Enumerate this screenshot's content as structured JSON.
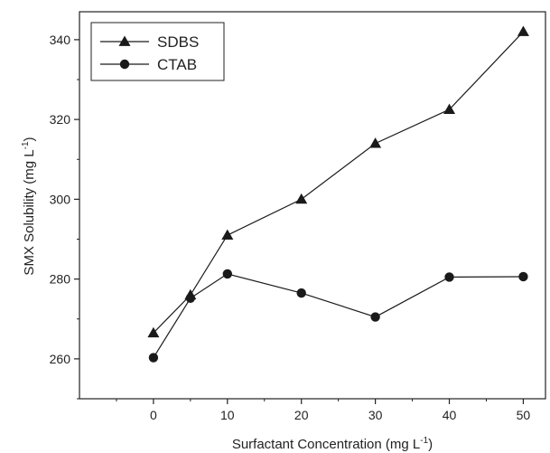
{
  "chart_data": {
    "type": "line",
    "xlabel": "Surfactant Concentration (mg L",
    "xlabel_sup": "-1",
    "xlabel_close": ")",
    "ylabel": "SMX Solubility (mg L",
    "ylabel_sup": "-1",
    "ylabel_close": ")",
    "xlim": [
      -10,
      53
    ],
    "ylim": [
      250,
      347
    ],
    "x_ticks": [
      0,
      10,
      20,
      30,
      40,
      50
    ],
    "y_ticks": [
      260,
      280,
      300,
      320,
      340
    ],
    "grid": false,
    "legend_position": "top-left",
    "series": [
      {
        "name": "SDBS",
        "marker": "triangle",
        "color": "#1a1a1a",
        "x": [
          0,
          5,
          10,
          20,
          30,
          40,
          50
        ],
        "y": [
          266.5,
          276,
          291,
          300,
          314,
          322.5,
          342
        ]
      },
      {
        "name": "CTAB",
        "marker": "circle",
        "color": "#1a1a1a",
        "x": [
          0,
          5,
          10,
          20,
          30,
          40,
          50
        ],
        "y": [
          260.3,
          275.2,
          281.3,
          276.5,
          270.5,
          280.5,
          280.6
        ]
      }
    ]
  }
}
